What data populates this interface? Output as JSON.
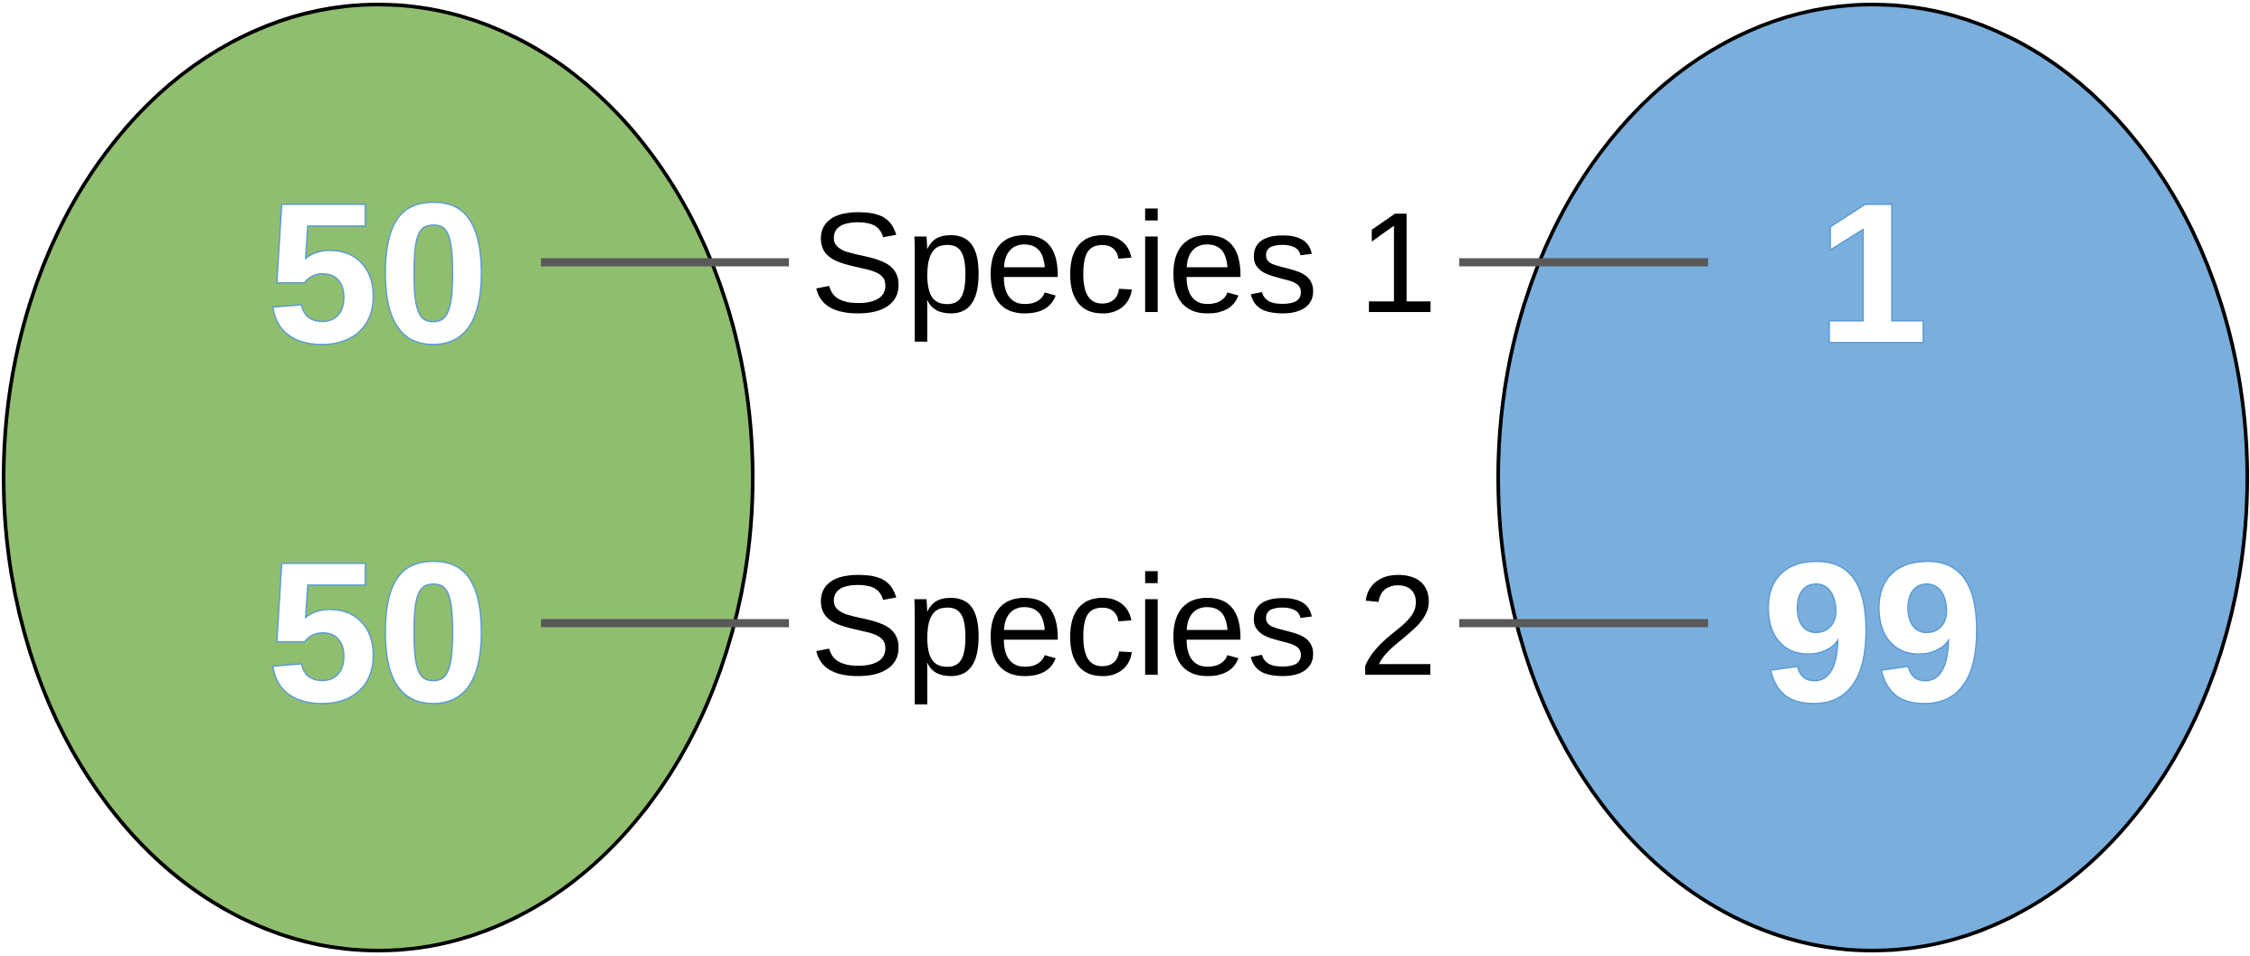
{
  "colors": {
    "community_a_fill": "#8fbe6f",
    "community_b_fill": "#7aaedc",
    "outline": "#000000",
    "connector": "#595959",
    "number_fill": "#ffffff",
    "number_outline": "#5b9bd5",
    "label_text": "#000000"
  },
  "community_a": {
    "species_1_count": "50",
    "species_2_count": "50"
  },
  "community_b": {
    "species_1_count": "1",
    "species_2_count": "99"
  },
  "labels": {
    "species_1": "Species 1",
    "species_2": "Species 2"
  }
}
